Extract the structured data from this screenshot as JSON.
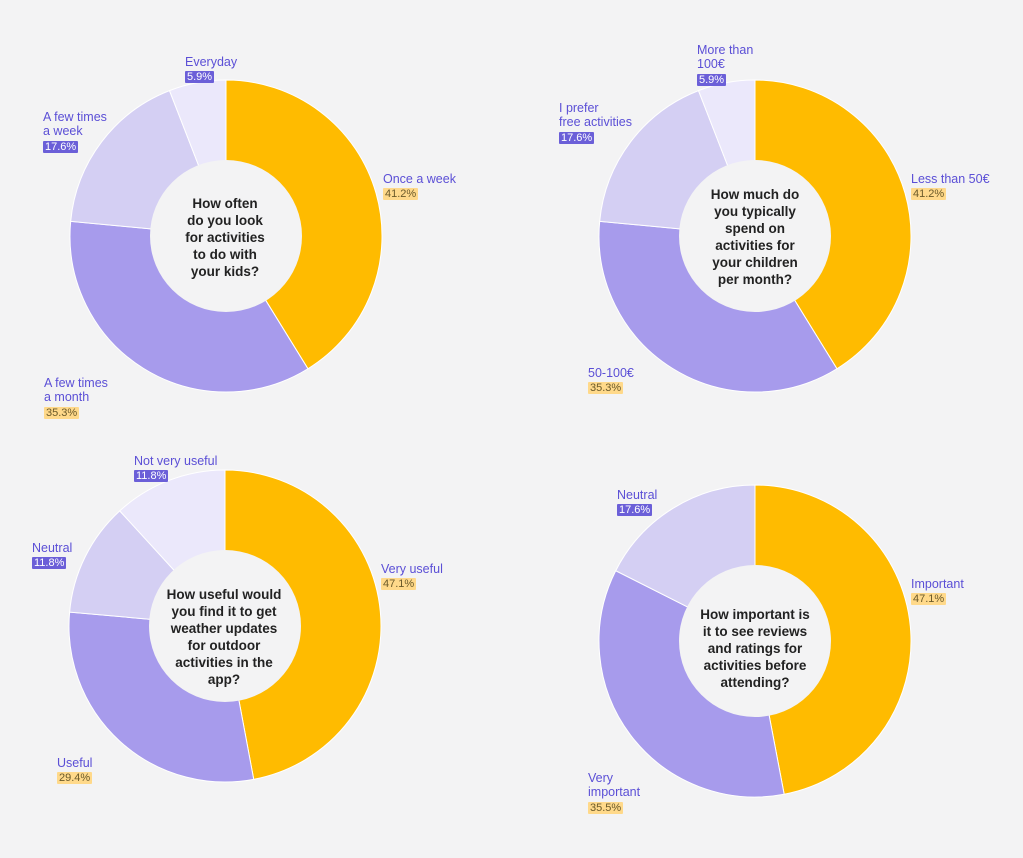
{
  "colors": {
    "yellow": "#ffbb00",
    "purple_mid": "#a79bec",
    "purple_light": "#d4cff3",
    "purple_pale": "#ebe8fb"
  },
  "chart_data": [
    {
      "type": "pie",
      "title": "How often\ndo you look\nfor activities\nto do with\nyour kids?",
      "slices": [
        {
          "label": "Once a week",
          "value": 41.2,
          "pct_text": "41.2%",
          "color": "#ffbb00"
        },
        {
          "label": "A few times\na month",
          "value": 35.3,
          "pct_text": "35.3%",
          "color": "#a79bec"
        },
        {
          "label": "A few times\na week",
          "value": 17.6,
          "pct_text": "17.6%",
          "color": "#d4cff3"
        },
        {
          "label": "Everyday",
          "value": 5.9,
          "pct_text": "5.9%",
          "color": "#ebe8fb"
        }
      ]
    },
    {
      "type": "pie",
      "title": "How much do\nyou typically\nspend on\nactivities for\nyour children\nper month?",
      "slices": [
        {
          "label": "Less than 50€",
          "value": 41.2,
          "pct_text": "41.2%",
          "color": "#ffbb00"
        },
        {
          "label": "50-100€",
          "value": 35.3,
          "pct_text": "35.3%",
          "color": "#a79bec"
        },
        {
          "label": "I prefer\nfree activities",
          "value": 17.6,
          "pct_text": "17.6%",
          "color": "#d4cff3"
        },
        {
          "label": "More than\n100€",
          "value": 5.9,
          "pct_text": "5.9%",
          "color": "#ebe8fb"
        }
      ]
    },
    {
      "type": "pie",
      "title": "How useful would\nyou find it to get\nweather updates\nfor outdoor\nactivities in the\napp?",
      "slices": [
        {
          "label": "Very useful",
          "value": 47.1,
          "pct_text": "47.1%",
          "color": "#ffbb00"
        },
        {
          "label": "Useful",
          "value": 29.4,
          "pct_text": "29.4%",
          "color": "#a79bec"
        },
        {
          "label": "Neutral",
          "value": 11.8,
          "pct_text": "11.8%",
          "color": "#d4cff3"
        },
        {
          "label": "Not very useful",
          "value": 11.8,
          "pct_text": "11.8%",
          "color": "#ebe8fb"
        }
      ]
    },
    {
      "type": "pie",
      "title": "How important is\nit to see reviews\nand ratings for\nactivities before\nattending?",
      "slices": [
        {
          "label": "Important",
          "value": 47.1,
          "pct_text": "47.1%",
          "color": "#ffbb00"
        },
        {
          "label": "Very\nimportant",
          "value": 35.5,
          "pct_text": "35.5%",
          "color": "#a79bec"
        },
        {
          "label": "Neutral",
          "value": 17.6,
          "pct_text": "17.6%",
          "color": "#d4cff3"
        }
      ]
    }
  ]
}
